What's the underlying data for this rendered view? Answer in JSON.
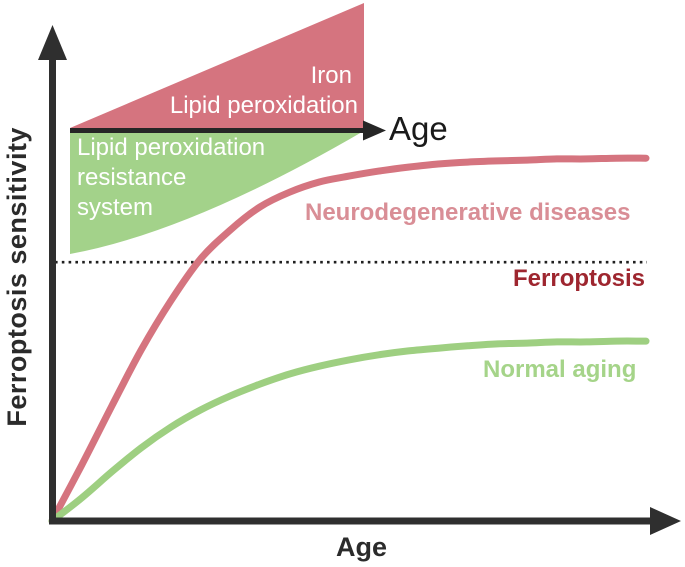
{
  "axes": {
    "x_label": "Age",
    "y_label": "Ferroptosis sensitivity"
  },
  "inset": {
    "age_label": "Age",
    "pink_wedge": {
      "line1": "Iron",
      "line2": "Lipid peroxidation"
    },
    "green_wedge": {
      "line1": "Lipid peroxidation",
      "line2": "resistance",
      "line3": "system"
    }
  },
  "curve_labels": {
    "neurodegenerative": "Neurodegenerative diseases",
    "ferroptosis_threshold": "Ferroptosis",
    "normal_aging": "Normal aging"
  },
  "colors": {
    "background": "#ffffff",
    "axis": "#2f2f2f",
    "pink_curve": "#d5747f",
    "pink_wedge": "#d5747f",
    "pink_label": "#d98e96",
    "green_curve": "#9ecf81",
    "green_wedge": "#a3d28a",
    "green_label": "#a5d489",
    "dark_red": "#9e262f",
    "wedge_text": "#ffffff",
    "threshold_line": "#1f1f1f"
  },
  "chart_data": {
    "type": "line",
    "title": "",
    "xlabel": "Age",
    "ylabel": "Ferroptosis sensitivity",
    "axis_numeric_ticks": false,
    "xlim": [
      0,
      1
    ],
    "ylim": [
      0,
      1
    ],
    "grid": false,
    "legend_position": "inline labels beside curves",
    "x": [
      0,
      0.05,
      0.1,
      0.15,
      0.2,
      0.25,
      0.3,
      0.35,
      0.4,
      0.45,
      0.5,
      0.55,
      0.6,
      0.65,
      0.7,
      0.75,
      0.8,
      0.85,
      0.9,
      0.95,
      1.0
    ],
    "series": [
      {
        "name": "Neurodegenerative diseases",
        "color": "#d5747f",
        "values": [
          0,
          0.143,
          0.292,
          0.437,
          0.563,
          0.67,
          0.744,
          0.803,
          0.841,
          0.867,
          0.882,
          0.895,
          0.905,
          0.913,
          0.918,
          0.921,
          0.923,
          0.926,
          0.926,
          0.928,
          0.928
        ]
      },
      {
        "name": "Normal aging",
        "color": "#9ecf81",
        "values": [
          0,
          0.059,
          0.125,
          0.187,
          0.24,
          0.284,
          0.32,
          0.35,
          0.376,
          0.396,
          0.412,
          0.425,
          0.435,
          0.442,
          0.448,
          0.453,
          0.455,
          0.458,
          0.458,
          0.46,
          0.46
        ]
      }
    ],
    "threshold": {
      "label": "Ferroptosis",
      "value": 0.662,
      "style": "dotted-horizontal-line",
      "color": "#1f1f1f"
    },
    "inset_diagram": {
      "x_label": "Age",
      "increasing_with_age": [
        "Iron",
        "Lipid peroxidation"
      ],
      "decreasing_with_age": "Lipid peroxidation resistance system"
    }
  }
}
